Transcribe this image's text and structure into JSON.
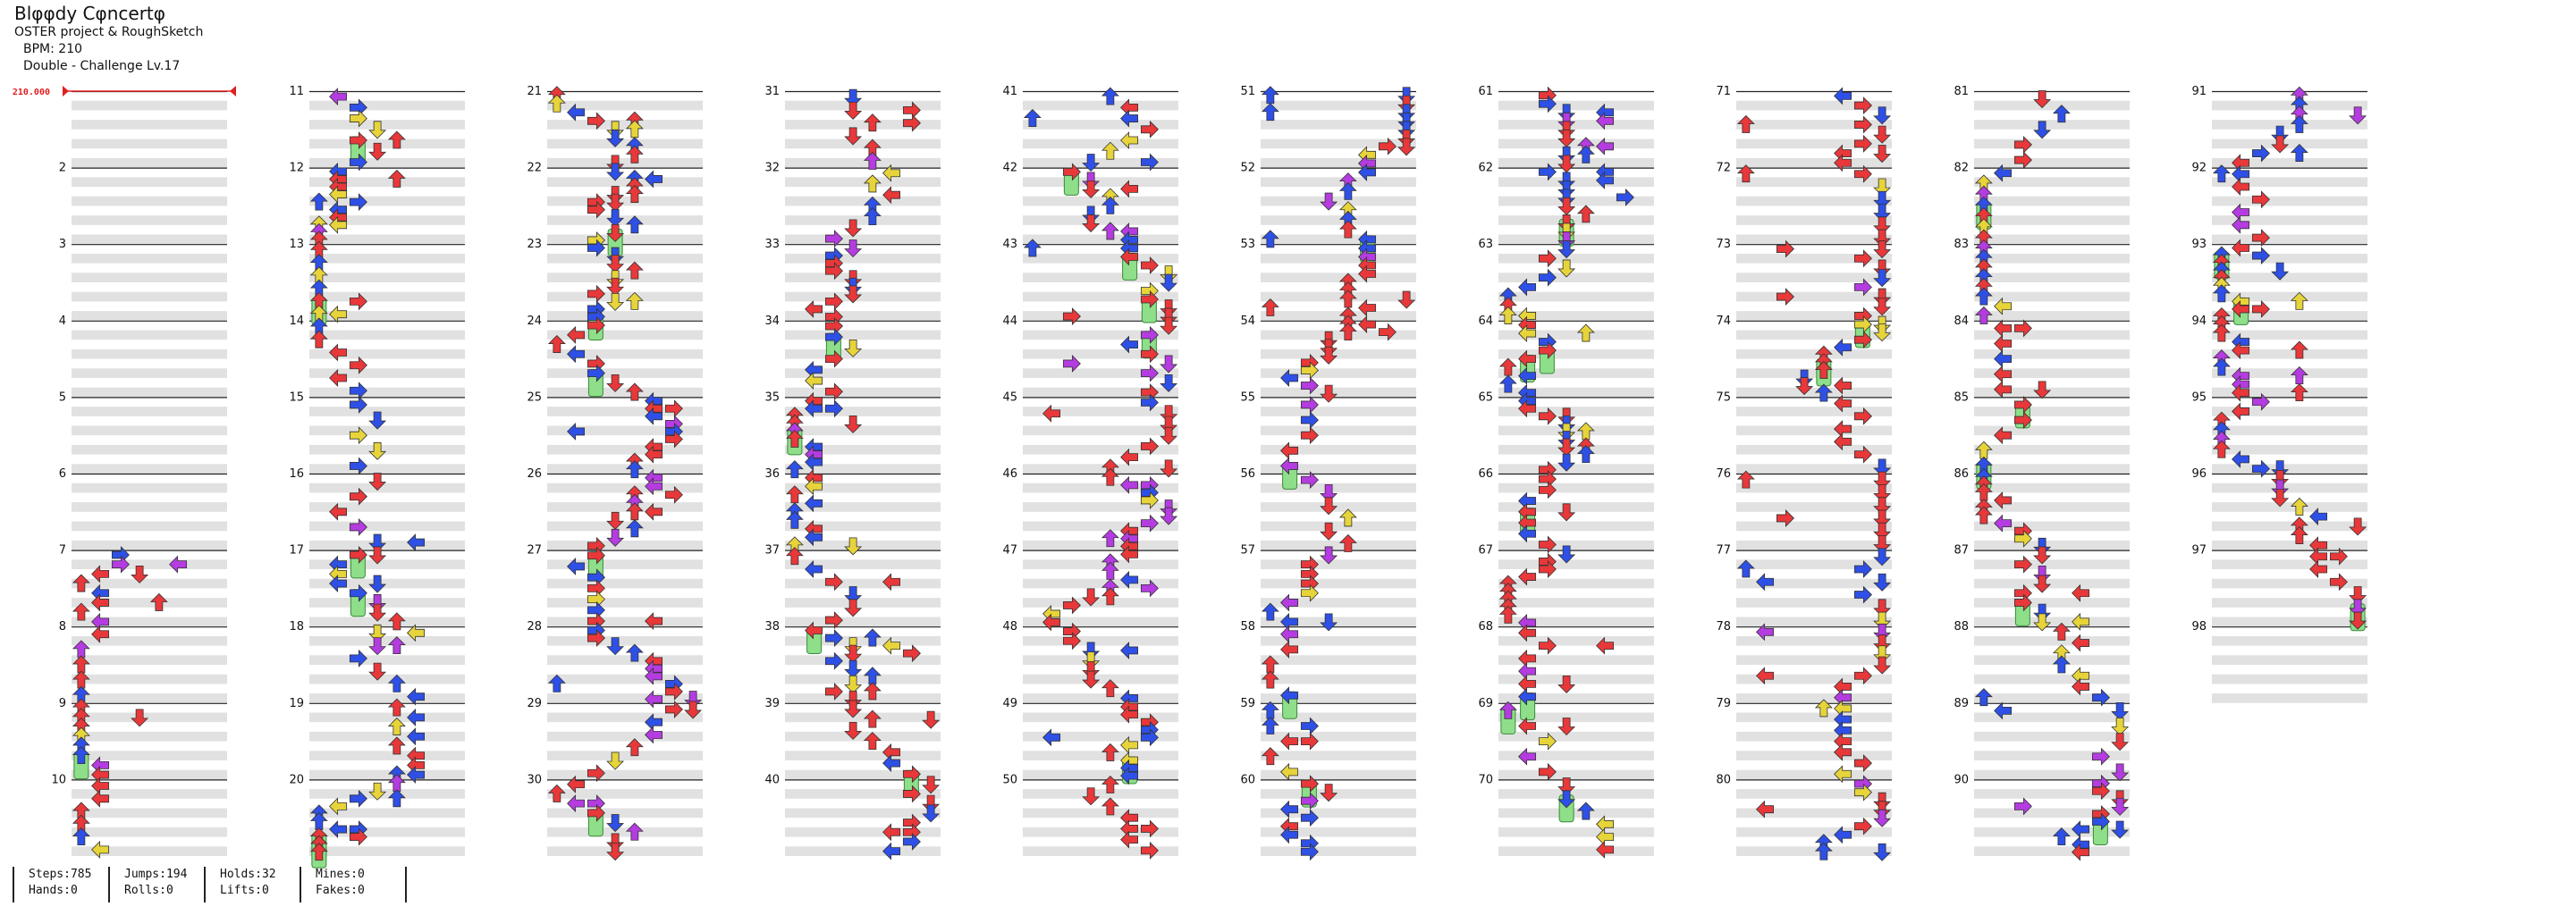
{
  "song": {
    "title": "Blφφdy Cφncertφ",
    "artist": "OSTER project & RoughSketch",
    "bpm_label": "BPM: 210",
    "difficulty_label": "Double - Challenge  Lv.17"
  },
  "bpm_marker": {
    "value_label": "210.000"
  },
  "measures": {
    "first": 1,
    "last": 98,
    "per_column": 10,
    "labeled_measures": [
      2,
      3,
      4,
      5,
      6,
      7,
      8,
      9,
      10,
      11,
      12,
      13,
      14,
      15,
      16,
      17,
      18,
      19,
      20,
      21,
      22,
      23,
      24,
      25,
      26,
      27,
      28,
      29,
      30,
      31,
      32,
      33,
      34,
      35,
      36,
      37,
      38,
      39,
      40,
      41,
      42,
      43,
      44,
      45,
      46,
      47,
      48,
      49,
      50,
      51,
      52,
      53,
      54,
      55,
      56,
      57,
      58,
      59,
      60,
      61,
      62,
      63,
      64,
      65,
      66,
      67,
      68,
      69,
      70,
      71,
      72,
      73,
      74,
      75,
      76,
      77,
      78,
      79,
      80,
      81,
      82,
      83,
      84,
      85,
      86,
      87,
      88,
      89,
      90,
      91,
      92,
      93,
      94,
      95,
      96,
      97,
      98
    ]
  },
  "colors": {
    "quarter": "#e8383a",
    "eighth": "#2e50e6",
    "sixteenth": "#b43ce0",
    "other": "#e6d43a",
    "hold": "#8ede8a",
    "bpm": "#e02020",
    "stripe": "#e1e1e1"
  },
  "stats": {
    "steps": "Steps:785",
    "hands": "Hands:0",
    "jumps": "Jumps:194",
    "rolls": "Rolls:0",
    "holds": "Holds:32",
    "lifts": "Lifts:0",
    "mines": "Mines:0",
    "fakes": "Fakes:0"
  }
}
